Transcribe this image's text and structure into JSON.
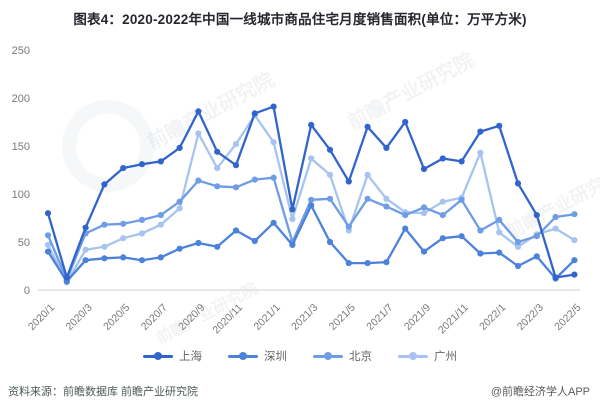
{
  "title": "图表4：2020-2022年中国一线城市商品住宅月度销售面积(单位：万平方米)",
  "footer": {
    "source": "资料来源：前瞻数据库 前瞻产业研究院",
    "credit": "@前瞻经济学人APP"
  },
  "watermark": {
    "brand": "前瞻产业研究院",
    "brand2": "前瞻经济学人APP"
  },
  "chart_data": {
    "type": "line",
    "title": "图表4：2020-2022年中国一线城市商品住宅月度销售面积(单位：万平方米)",
    "xlabel": "",
    "ylabel": "万平方米",
    "ylim": [
      0,
      250
    ],
    "yticks": [
      0,
      50,
      100,
      150,
      200,
      250
    ],
    "grid": false,
    "legend_position": "bottom",
    "categories": [
      "2020/1",
      "2020/2",
      "2020/3",
      "2020/4",
      "2020/5",
      "2020/6",
      "2020/7",
      "2020/8",
      "2020/9",
      "2020/10",
      "2020/11",
      "2020/12",
      "2021/1",
      "2021/2",
      "2021/3",
      "2021/4",
      "2021/5",
      "2021/6",
      "2021/7",
      "2021/8",
      "2021/9",
      "2021/10",
      "2021/11",
      "2021/12",
      "2022/1",
      "2022/2",
      "2022/3",
      "2022/4",
      "2022/5"
    ],
    "x_tick_labels": [
      "2020/1",
      "2020/3",
      "2020/5",
      "2020/7",
      "2020/9",
      "2020/11",
      "2021/1",
      "2021/3",
      "2021/5",
      "2021/7",
      "2021/9",
      "2021/11",
      "2022/1",
      "2022/3",
      "2022/5"
    ],
    "series": [
      {
        "name": "上海",
        "color": "#3265cb",
        "values": [
          80,
          13,
          65,
          110,
          127,
          131,
          134,
          148,
          186,
          144,
          130,
          184,
          191,
          84,
          172,
          146,
          113,
          170,
          148,
          175,
          126,
          137,
          134,
          165,
          171,
          111,
          78,
          13,
          16
        ]
      },
      {
        "name": "深圳",
        "color": "#4d82da",
        "values": [
          40,
          9,
          31,
          33,
          34,
          31,
          34,
          43,
          49,
          45,
          62,
          51,
          70,
          47,
          88,
          50,
          28,
          28,
          29,
          64,
          40,
          54,
          56,
          38,
          39,
          25,
          35,
          12,
          31
        ]
      },
      {
        "name": "北京",
        "color": "#6e9ce5",
        "values": [
          57,
          11,
          59,
          68,
          69,
          73,
          78,
          92,
          114,
          108,
          107,
          115,
          117,
          50,
          94,
          95,
          66,
          95,
          87,
          78,
          86,
          78,
          94,
          62,
          73,
          50,
          56,
          76,
          79
        ]
      },
      {
        "name": "广州",
        "color": "#a6c4ef",
        "values": [
          47,
          8,
          42,
          45,
          54,
          59,
          68,
          85,
          163,
          127,
          152,
          182,
          154,
          74,
          137,
          120,
          62,
          120,
          95,
          81,
          80,
          92,
          96,
          143,
          60,
          45,
          58,
          64,
          52
        ]
      }
    ]
  }
}
